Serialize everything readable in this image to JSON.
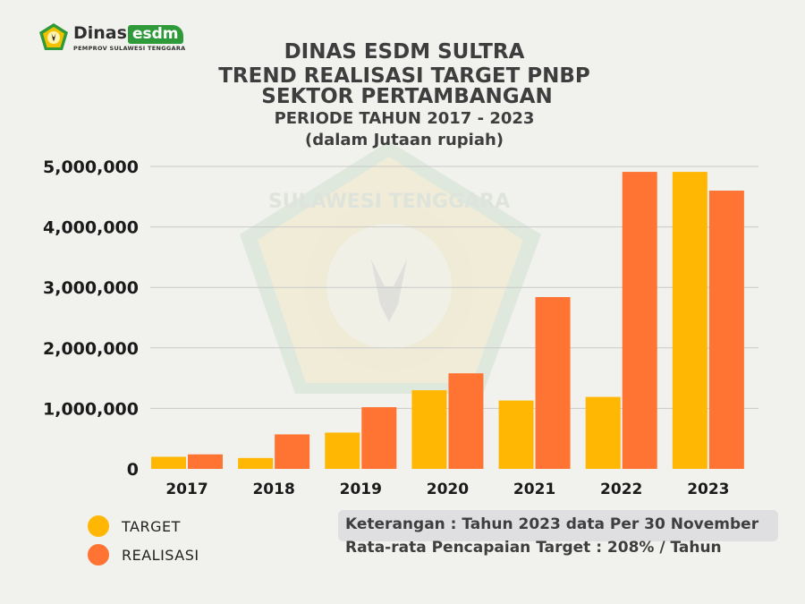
{
  "brand": {
    "name_part1": "Dinas",
    "name_part2": "esdm",
    "subtitle": "PEMPROV SULAWESI TENGGARA",
    "watermark_text": "SULAWESI TENGGARA"
  },
  "colors": {
    "target": "#ffb703",
    "realisasi": "#ff7333",
    "brand_green": "#2e9a3a"
  },
  "legend": {
    "target_label": "TARGET",
    "realisasi_label": "REALISASI"
  },
  "notes": {
    "line1": "Keterangan : Tahun 2023 data Per 30 November",
    "line2": "Rata-rata Pencapaian Target : 208% / Tahun"
  },
  "chart_data": {
    "type": "bar",
    "title_lines": [
      "DINAS ESDM SULTRA",
      "TREND REALISASI TARGET PNBP",
      "SEKTOR PERTAMBANGAN",
      "PERIODE TAHUN 2017 - 2023",
      "(dalam Jutaan rupiah)"
    ],
    "categories": [
      "2017",
      "2018",
      "2019",
      "2020",
      "2021",
      "2022",
      "2023"
    ],
    "series": [
      {
        "name": "TARGET",
        "values": [
          200000,
          180000,
          600000,
          1300000,
          1130000,
          1190000,
          4910000
        ]
      },
      {
        "name": "REALISASI",
        "values": [
          240000,
          570000,
          1020000,
          1580000,
          2840000,
          4910000,
          4600000
        ]
      }
    ],
    "yticks": [
      0,
      1000000,
      2000000,
      3000000,
      4000000,
      5000000
    ],
    "ytick_labels": [
      "0",
      "1,000,000",
      "2,000,000",
      "3,000,000",
      "4,000,000",
      "5,000,000"
    ],
    "ylim": [
      0,
      5000000
    ],
    "grid": true,
    "legend_position": "bottom-left"
  }
}
